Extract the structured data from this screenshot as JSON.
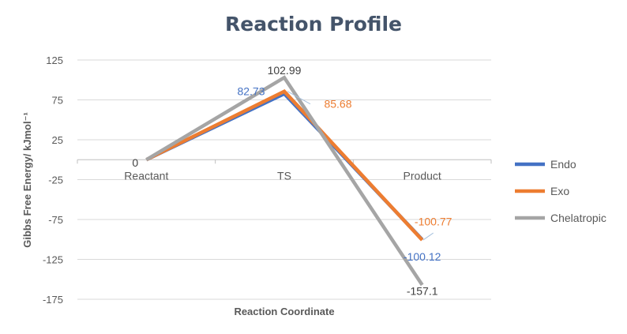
{
  "chart_data": {
    "type": "line",
    "title": "Reaction Profile",
    "xlabel": "Reaction Coordinate",
    "ylabel": "Gibbs Free Energy/ kJmol⁻¹",
    "categories": [
      "Reactant",
      "TS",
      "Product"
    ],
    "ylim": [
      -175,
      125
    ],
    "yticks": [
      125,
      75,
      25,
      -25,
      -75,
      -125,
      -175
    ],
    "grid": true,
    "legend_position": "right",
    "series": [
      {
        "name": "Endo",
        "color": "#4472c4",
        "values": [
          0,
          82.73,
          -100.12
        ],
        "labels": [
          "",
          "82.73",
          "-100.12"
        ]
      },
      {
        "name": "Exo",
        "color": "#ed7d31",
        "values": [
          0,
          85.68,
          -100.77
        ],
        "labels": [
          "",
          "85.68",
          "-100.77"
        ]
      },
      {
        "name": "Chelatropic",
        "color": "#a5a5a5",
        "values": [
          0,
          102.99,
          -157.1
        ],
        "labels": [
          "0",
          "102.99",
          "-157.1"
        ]
      }
    ]
  }
}
